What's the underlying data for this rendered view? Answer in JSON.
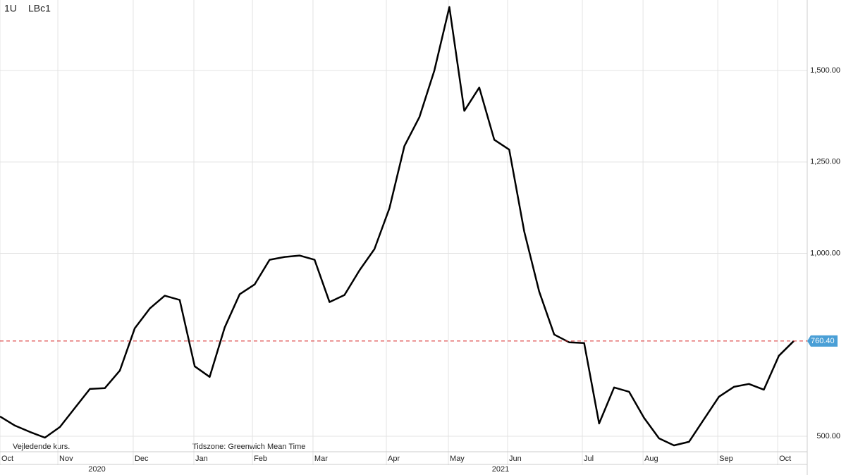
{
  "chart_data": {
    "type": "line",
    "header": [
      "1U",
      "LBc1"
    ],
    "notes": [
      "Vejledende kurs.",
      "Tidszone: Greenwich Mean Time"
    ],
    "series": [
      {
        "color": "#000000",
        "values": [
          554.1,
          529,
          511.6,
          496.1,
          525.1,
          577.2,
          629.3,
          631.3,
          679.5,
          795.4,
          849.4,
          884.2,
          872.6,
          691.1,
          662.2,
          797.3,
          888,
          915,
          982.6,
          990.3,
          994.2,
          982.6,
          866.8,
          886.1,
          953.7,
          1011.6,
          1123.6,
          1293.4,
          1372.6,
          1500,
          1673.7,
          1389.9,
          1453.7,
          1310.8,
          1283.8,
          1059.8,
          895.7,
          778,
          756.8,
          754.8,
          534.7,
          633.2,
          621.6,
          550.2,
          494.2,
          474.9,
          484.6,
          546.3,
          608.1,
          635.1,
          642.9,
          627.4,
          720.1,
          760.4
        ]
      }
    ],
    "last_value_label": "760.40",
    "reference_line_color": "#d62728",
    "xlim": [
      0,
      53.88
    ],
    "xticks": [
      {
        "value": 0,
        "label": "Oct"
      },
      {
        "value": 3.86,
        "label": "Nov"
      },
      {
        "value": 8.89,
        "label": "Dec"
      },
      {
        "value": 12.94,
        "label": "Jan"
      },
      {
        "value": 16.85,
        "label": "Feb"
      },
      {
        "value": 20.89,
        "label": "Mar"
      },
      {
        "value": 25.79,
        "label": "Apr"
      },
      {
        "value": 29.93,
        "label": "May"
      },
      {
        "value": 33.88,
        "label": "Jun"
      },
      {
        "value": 38.87,
        "label": "Jul"
      },
      {
        "value": 42.92,
        "label": "Aug"
      },
      {
        "value": 47.91,
        "label": "Sep"
      },
      {
        "value": 51.91,
        "label": "Oct"
      }
    ],
    "years": [
      {
        "label": "2020",
        "from": 0,
        "to": 12.94
      },
      {
        "label": "2021",
        "from": 12.94,
        "to": 53.88
      }
    ],
    "ylim": [
      457.5,
      1693
    ],
    "yticks": [
      {
        "value": 500,
        "label": "500.00"
      },
      {
        "value": 1000,
        "label": "1,000.00"
      },
      {
        "value": 1250,
        "label": "1,250.00"
      },
      {
        "value": 1500,
        "label": "1,500.00"
      }
    ],
    "grid": true
  }
}
